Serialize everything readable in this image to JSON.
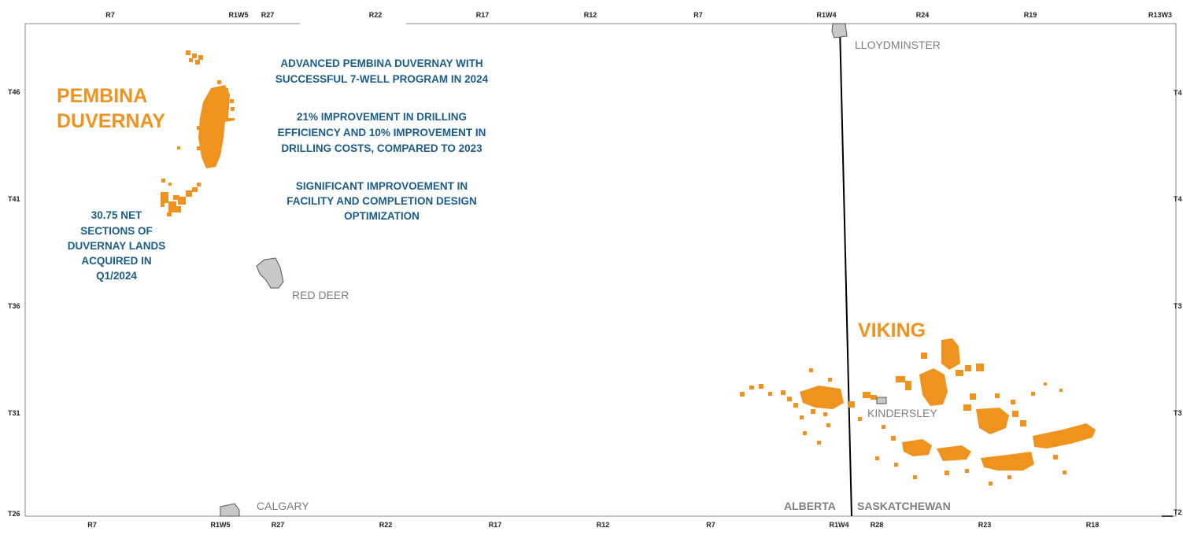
{
  "colors": {
    "land_orange": "#f0931e",
    "note_blue": "#1a5d8a",
    "city_grey": "#7f7f7f",
    "city_fill": "#c8c8c8",
    "frame": "#888888",
    "border": "#000000"
  },
  "grid": {
    "top_ranges": [
      "R7",
      "R1W5",
      "R27",
      "R22",
      "R17",
      "R12",
      "R7",
      "R1W4",
      "R24",
      "R19",
      "R13W3"
    ],
    "bottom_ranges": [
      "R7",
      "R1W5",
      "R27",
      "R22",
      "R17",
      "R12",
      "R7",
      "R1W4",
      "R28",
      "R23",
      "R18"
    ],
    "left_townships": [
      "T46",
      "T41",
      "T36",
      "T31",
      "T26"
    ],
    "right_townships": [
      "T4",
      "T4",
      "T3",
      "T3",
      "T2"
    ]
  },
  "cities": [
    {
      "name": "LLOYDMINSTER"
    },
    {
      "name": "RED DEER"
    },
    {
      "name": "KINDERSLEY"
    },
    {
      "name": "CALGARY"
    }
  ],
  "provinces": {
    "west": "ALBERTA",
    "east": "SASKATCHEWAN"
  },
  "plays": {
    "pembina": [
      "PEMBINA",
      "DUVERNAY"
    ],
    "viking": "VIKING"
  },
  "callouts": {
    "net_sections": [
      "30.75 NET",
      "SECTIONS OF",
      "DUVERNAY LANDS",
      "ACQUIRED IN",
      "Q1/2024"
    ],
    "highlights": [
      [
        "ADVANCED PEMBINA DUVERNAY WITH",
        "SUCCESSFUL 7-WELL PROGRAM IN 2024"
      ],
      [
        "21% IMPROVEMENT IN DRILLING",
        "EFFICIENCY AND 10% IMPROVEMENT IN",
        "DRILLING COSTS, COMPARED TO 2023"
      ],
      [
        "SIGNIFICANT IMPROVOEMENT IN",
        "FACILITY AND COMPLETION DESIGN",
        "OPTIMIZATION"
      ]
    ]
  }
}
